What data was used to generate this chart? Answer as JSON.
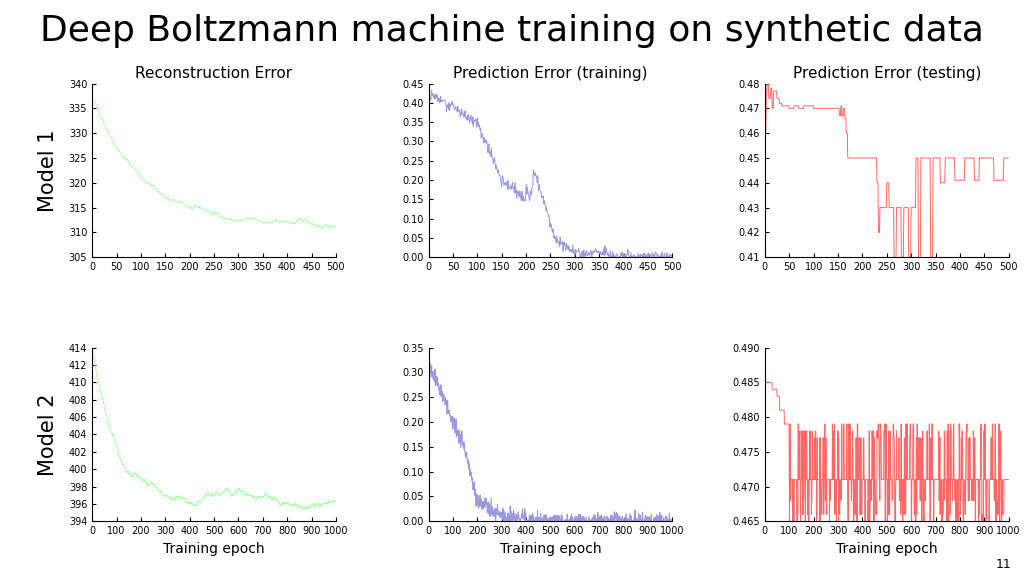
{
  "title": "Deep Boltzmann machine training on synthetic data",
  "col_titles": [
    "Reconstruction Error",
    "Prediction Error (training)",
    "Prediction Error (testing)"
  ],
  "row_labels": [
    "Model 1",
    "Model 2"
  ],
  "xlabel": "Training epoch",
  "recon1_ylim": [
    305,
    340
  ],
  "recon1_yticks": [
    305,
    310,
    315,
    320,
    325,
    330,
    335,
    340
  ],
  "recon2_ylim": [
    394,
    414
  ],
  "recon2_yticks": [
    394,
    396,
    398,
    400,
    402,
    404,
    406,
    408,
    410,
    412,
    414
  ],
  "pred_train1_ylim": [
    0,
    0.45
  ],
  "pred_train1_yticks": [
    0,
    0.05,
    0.1,
    0.15,
    0.2,
    0.25,
    0.3,
    0.35,
    0.4,
    0.45
  ],
  "pred_train2_ylim": [
    0,
    0.35
  ],
  "pred_train2_yticks": [
    0,
    0.05,
    0.1,
    0.15,
    0.2,
    0.25,
    0.3,
    0.35
  ],
  "pred_test1_ylim": [
    0.41,
    0.48
  ],
  "pred_test1_yticks": [
    0.41,
    0.42,
    0.43,
    0.44,
    0.45,
    0.46,
    0.47,
    0.48
  ],
  "pred_test2_ylim": [
    0.465,
    0.49
  ],
  "pred_test2_yticks": [
    0.465,
    0.47,
    0.475,
    0.48,
    0.485,
    0.49
  ],
  "model1_xlim": [
    0,
    500
  ],
  "model2_xlim": [
    0,
    1000
  ],
  "model1_xticks": [
    0,
    50,
    100,
    150,
    200,
    250,
    300,
    350,
    400,
    450,
    500
  ],
  "model2_xticks": [
    0,
    100,
    200,
    300,
    400,
    500,
    600,
    700,
    800,
    900,
    1000
  ],
  "green_color": "#aaffaa",
  "blue_color": "#9999dd",
  "red_color": "#ff6666",
  "bg_color": "#FFFFFF",
  "title_fontsize": 26,
  "col_title_fontsize": 11,
  "row_label_fontsize": 15,
  "tick_fontsize": 7,
  "xlabel_fontsize": 10,
  "annotation": "11"
}
